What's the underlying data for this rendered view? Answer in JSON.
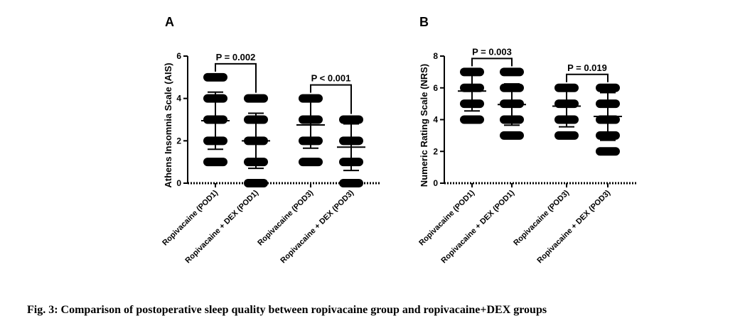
{
  "caption": "Fig. 3: Comparison of postoperative sleep quality between ropivacaine group and ropivacaine+DEX groups",
  "colors": {
    "ink": "#000000",
    "background": "#ffffff"
  },
  "chart_data": [
    {
      "type": "scatter",
      "panel_letter": "A",
      "ylabel": "Athens Insomnia Scale (AIS)",
      "ylim": [
        0,
        6
      ],
      "yticks": [
        0,
        2,
        4,
        6
      ],
      "categories": [
        "Ropivacaine (POD1)",
        "Ropivacaine + DEX (POD1)",
        "Ropivacaine (POD3)",
        "Ropivacaine + DEX (POD3)"
      ],
      "points": [
        [
          1,
          2,
          3,
          4,
          5
        ],
        [
          0,
          1,
          2,
          3,
          4
        ],
        [
          1,
          2,
          3,
          4
        ],
        [
          0,
          1,
          2,
          3
        ]
      ],
      "mean": [
        2.95,
        2.0,
        2.75,
        1.7
      ],
      "sd": [
        1.35,
        1.3,
        1.1,
        1.1
      ],
      "comparisons": [
        {
          "from": 0,
          "to": 1,
          "label": "P = 0.002"
        },
        {
          "from": 2,
          "to": 3,
          "label": "P < 0.001"
        }
      ]
    },
    {
      "type": "scatter",
      "panel_letter": "B",
      "ylabel": "Numeric Rating Scale (NRS)",
      "ylim": [
        0,
        8
      ],
      "yticks": [
        0,
        2,
        4,
        6,
        8
      ],
      "categories": [
        "Ropivacaine (POD1)",
        "Ropivacaine + DEX (POD1)",
        "Ropivacaine (POD3)",
        "Ropivacaine + DEX (POD3)"
      ],
      "points": [
        [
          4,
          5,
          6,
          7
        ],
        [
          3,
          4,
          5,
          6,
          7
        ],
        [
          3,
          4,
          5,
          6
        ],
        [
          2,
          3,
          4,
          5,
          6
        ]
      ],
      "mean": [
        5.8,
        4.95,
        4.85,
        4.2
      ],
      "sd": [
        1.25,
        1.3,
        1.3,
        1.5
      ],
      "comparisons": [
        {
          "from": 0,
          "to": 1,
          "label": "P = 0.003"
        },
        {
          "from": 2,
          "to": 3,
          "label": "P = 0.019"
        }
      ]
    }
  ]
}
